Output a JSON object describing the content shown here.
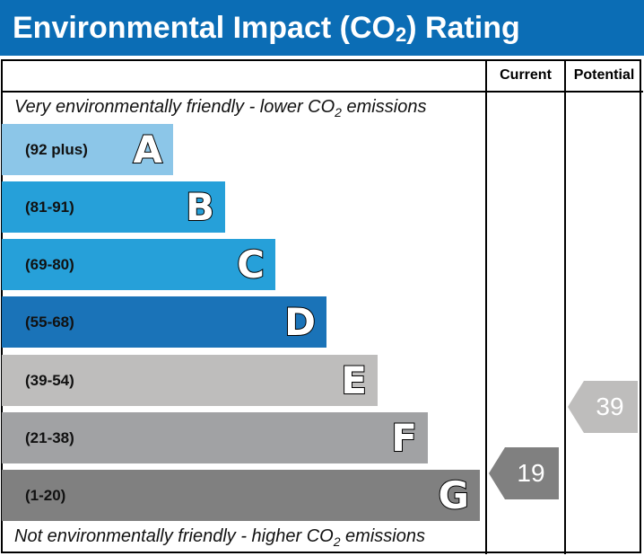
{
  "title": {
    "main": "Environmental Impact (CO",
    "sub": "2",
    "end": ") Rating"
  },
  "columns": {
    "current": "Current",
    "potential": "Potential"
  },
  "top_note": {
    "pre": "Very environmentally friendly - lower CO",
    "sub": "2",
    "post": " emissions"
  },
  "bottom_note": {
    "pre": "Not environmentally friendly - higher CO",
    "sub": "2",
    "post": " emissions"
  },
  "chart_data": {
    "type": "bar",
    "bands": [
      {
        "letter": "A",
        "range": "(92 plus)",
        "color": "#8cc6e8"
      },
      {
        "letter": "B",
        "range": "(81-91)",
        "color": "#26a0d9"
      },
      {
        "letter": "C",
        "range": "(69-80)",
        "color": "#26a0d9"
      },
      {
        "letter": "D",
        "range": "(55-68)",
        "color": "#1a73b8"
      },
      {
        "letter": "E",
        "range": "(39-54)",
        "color": "#bebdbc"
      },
      {
        "letter": "F",
        "range": "(21-38)",
        "color": "#a1a2a4"
      },
      {
        "letter": "G",
        "range": "(1-20)",
        "color": "#808080"
      }
    ],
    "current": {
      "value": "19",
      "band": "G",
      "color": "#808080"
    },
    "potential": {
      "value": "39",
      "band": "E",
      "color": "#bebdbc"
    }
  }
}
